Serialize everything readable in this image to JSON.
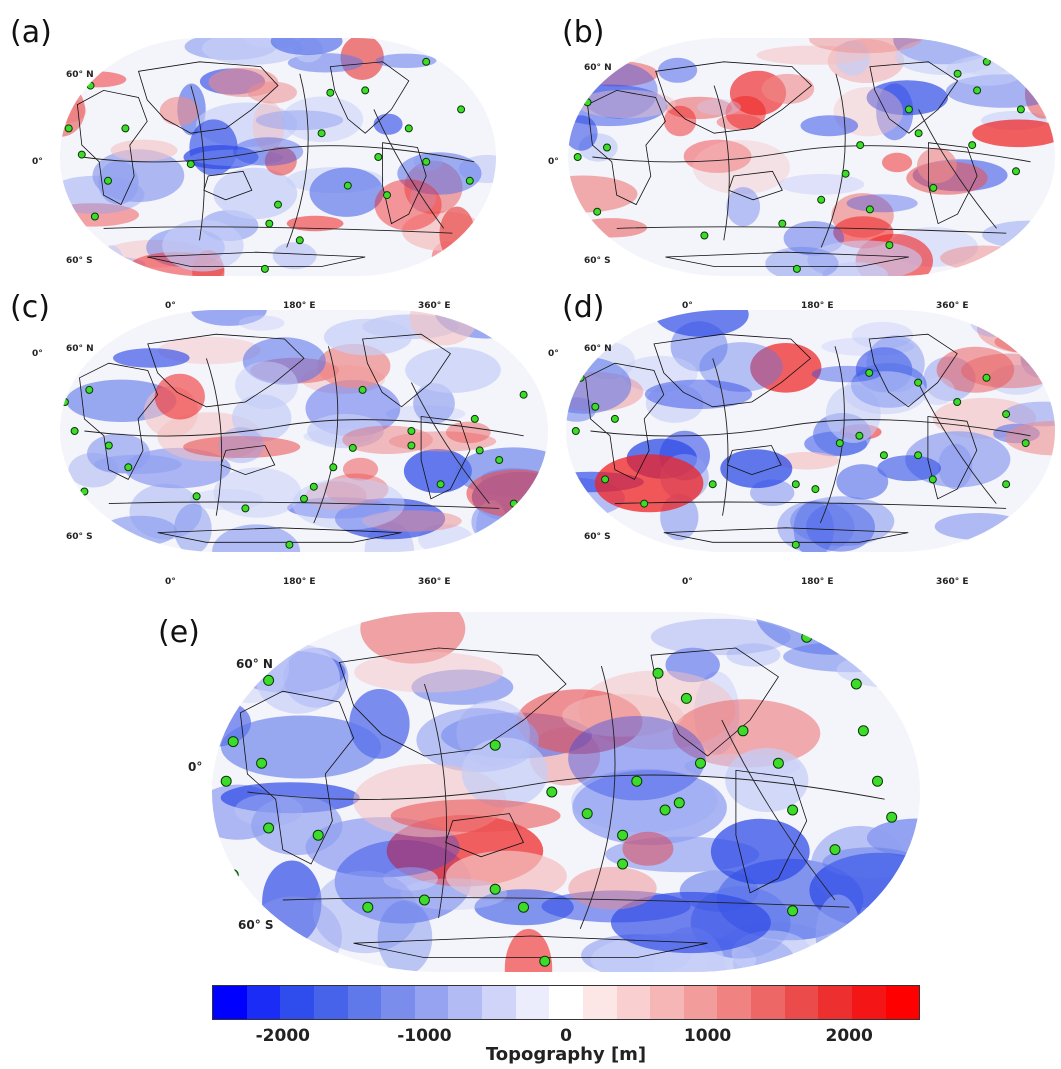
{
  "panels": [
    {
      "label": "(a)",
      "lat_labels": [
        "60° N",
        "0°",
        "60° S"
      ],
      "lon_labels_top": [],
      "lon_labels_bottom": []
    },
    {
      "label": "(b)",
      "lat_labels": [
        "60° N",
        "0°",
        "60° S"
      ],
      "lon_labels_top": [],
      "lon_labels_bottom": []
    },
    {
      "label": "(c)",
      "lat_labels": [
        "60° N",
        "0°",
        "60° S"
      ],
      "lon_labels_top": [
        "0°",
        "180° E",
        "360° E"
      ],
      "lon_labels_bottom": [
        "0°",
        "180° E",
        "360° E"
      ]
    },
    {
      "label": "(d)",
      "lat_labels": [
        "60° N",
        "0°",
        "60° S"
      ],
      "lon_labels_top": [
        "0°",
        "180° E",
        "360° E"
      ],
      "lon_labels_bottom": [
        "0°",
        "180° E",
        "360° E"
      ]
    },
    {
      "label": "(e)",
      "lat_labels": [
        "60° N",
        "0°",
        "60° S"
      ],
      "lon_labels_top": [],
      "lon_labels_bottom": []
    }
  ],
  "colorbar": {
    "title": "Topography [m]",
    "range": [
      -2500,
      2500
    ],
    "ticks": [
      "-2000",
      "-1000",
      "0",
      "1000",
      "2000"
    ],
    "tick_values": [
      -2000,
      -1000,
      0,
      1000,
      2000
    ],
    "colors": [
      "#0000ff",
      "#1a2cf5",
      "#2f4ced",
      "#4663ea",
      "#5f78ea",
      "#7a8ded",
      "#95a3f0",
      "#b2bbf4",
      "#cfd4f8",
      "#ebedfc",
      "#ffffff",
      "#fce6e6",
      "#f9cfcf",
      "#f6b6b6",
      "#f39c9c",
      "#f08282",
      "#ee6767",
      "#ec4b4b",
      "#ed2f2f",
      "#f41616",
      "#ff0000"
    ]
  },
  "marker_color": "#3ddc2a"
}
